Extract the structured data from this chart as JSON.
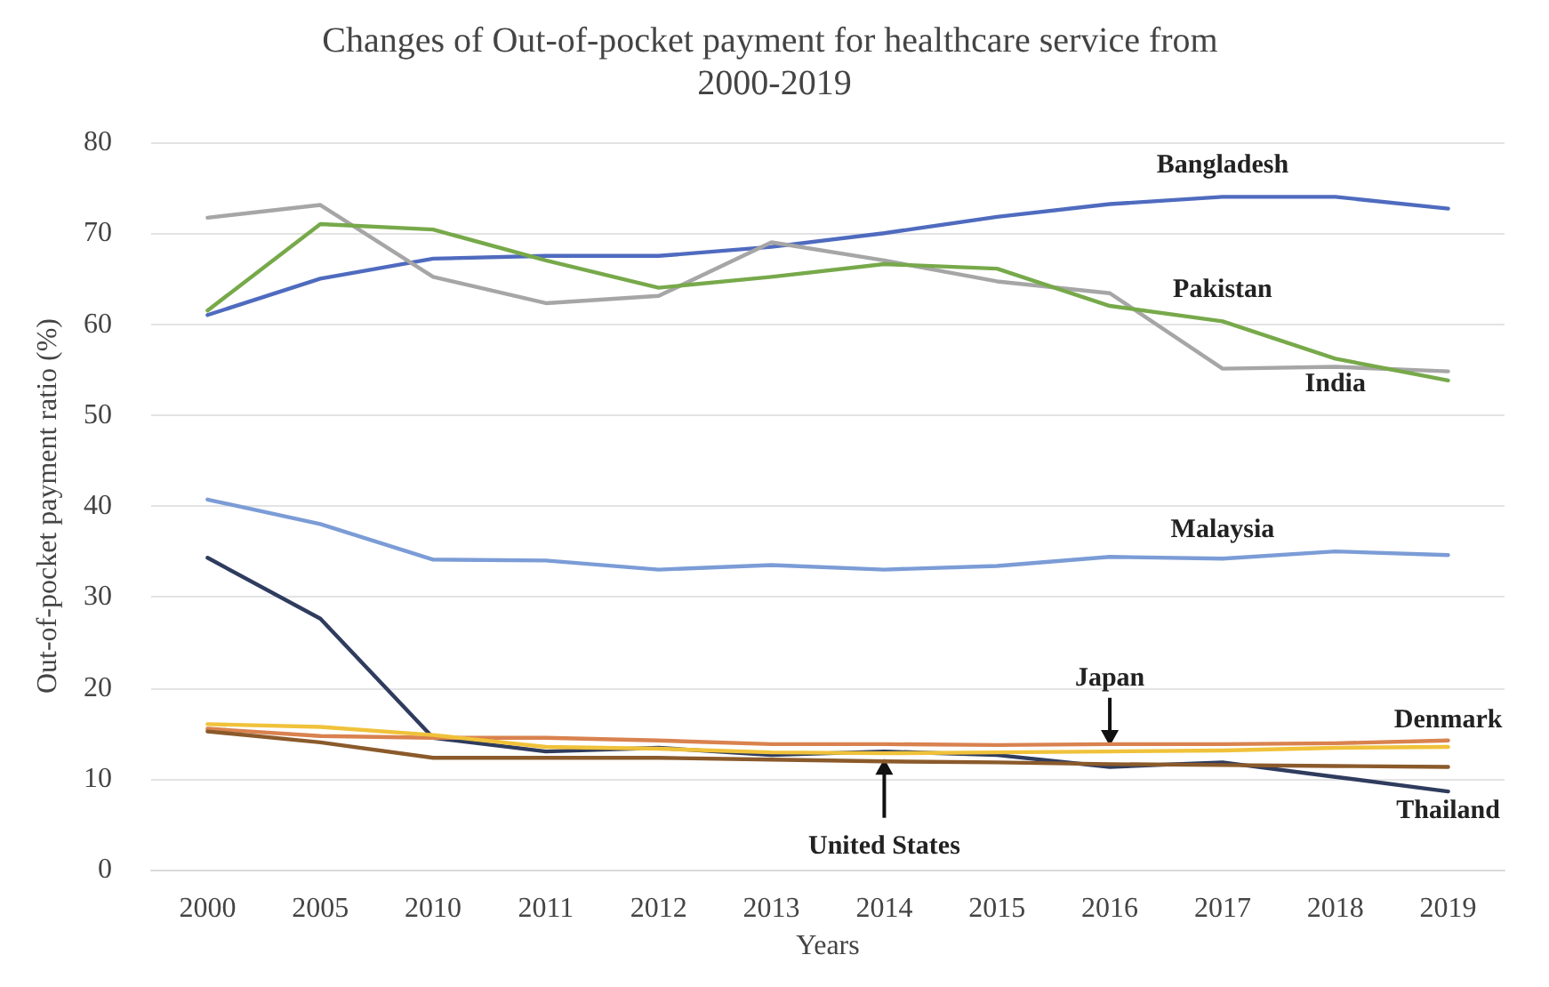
{
  "chart_data": {
    "type": "line",
    "title": "Changes of Out-of-pocket payment for healthcare service from 2000-2019",
    "xlabel": "Years",
    "ylabel": "Out-of-pocket payment ratio (%)",
    "categories": [
      "2000",
      "2005",
      "2010",
      "2011",
      "2012",
      "2013",
      "2014",
      "2015",
      "2016",
      "2017",
      "2018",
      "2019"
    ],
    "series": [
      {
        "name": "Bangladesh",
        "color": "#4f6bbf",
        "values": [
          61,
          65,
          67.2,
          67.5,
          67.5,
          68.5,
          70,
          71.8,
          73.2,
          74,
          74,
          72.7
        ]
      },
      {
        "name": "India",
        "color": "#a6a6a6",
        "values": [
          71.7,
          73.1,
          65.2,
          62.3,
          63.1,
          69,
          67,
          64.7,
          63.4,
          55.1,
          55.3,
          54.8
        ]
      },
      {
        "name": "Pakistan",
        "color": "#77a94a",
        "values": [
          61.5,
          71,
          70.4,
          67,
          64,
          65.2,
          66.6,
          66.1,
          62,
          60.3,
          56.2,
          53.8
        ]
      },
      {
        "name": "Malaysia",
        "color": "#7b9cd6",
        "values": [
          40.7,
          38,
          34.1,
          34,
          33,
          33.5,
          33,
          33.4,
          34.4,
          34.2,
          35,
          34.6
        ]
      },
      {
        "name": "Thailand",
        "color": "#2f3c5e",
        "values": [
          34.3,
          27.6,
          14.5,
          13,
          13.4,
          12.6,
          13,
          12.6,
          11.3,
          11.8,
          10.2,
          8.6
        ]
      },
      {
        "name": "Denmark",
        "color": "#d9824f",
        "values": [
          15.5,
          14.7,
          14.5,
          14.5,
          14.2,
          13.8,
          13.8,
          13.7,
          13.8,
          13.8,
          13.9,
          14.2
        ]
      },
      {
        "name": "Japan",
        "color": "#f0c23a",
        "values": [
          16,
          15.7,
          14.8,
          13.5,
          13.3,
          12.9,
          12.8,
          12.9,
          13,
          13.1,
          13.4,
          13.5
        ]
      },
      {
        "name": "United States",
        "color": "#8b5a2b",
        "values": [
          15.2,
          14,
          12.3,
          12.3,
          12.3,
          12.1,
          11.9,
          11.8,
          11.6,
          11.5,
          11.4,
          11.3
        ]
      }
    ],
    "ylim": [
      0,
      80
    ],
    "yticks": [
      0,
      10,
      20,
      30,
      40,
      50,
      60,
      70,
      80
    ],
    "grid": "y",
    "legend": false,
    "marker": "none",
    "line_style": "solid"
  }
}
